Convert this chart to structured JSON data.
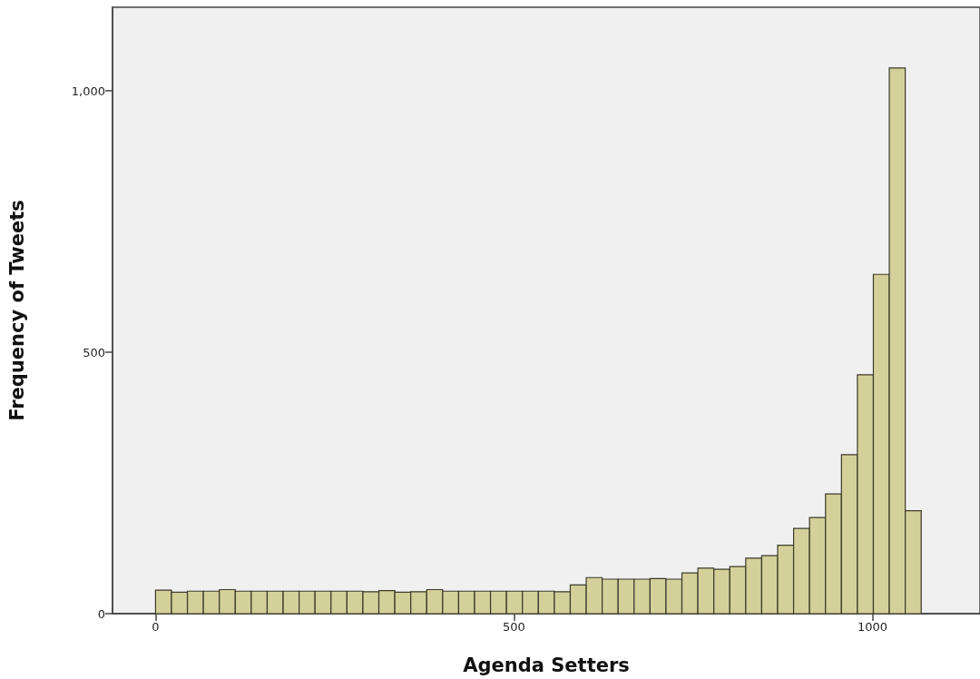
{
  "chart_data": {
    "type": "histogram",
    "xlabel": "Agenda Setters",
    "ylabel": "Frequency of Tweets",
    "color": "#d4d09a",
    "bins": [
      0,
      22.25,
      44.5,
      66.75,
      89,
      111.25,
      133.5,
      155.75,
      178,
      200.25,
      222.5,
      244.75,
      267,
      289.25,
      311.5,
      333.75,
      356,
      378.25,
      400.5,
      422.75,
      445,
      467.25,
      489.5,
      511.75,
      534,
      556.25,
      578.5,
      600.75,
      623,
      645.25,
      667.5,
      689.75,
      712,
      734.25,
      756.5,
      778.75,
      801,
      823.25,
      845.5,
      867.75,
      890,
      912.25,
      934.5,
      956.75,
      979,
      1001.25,
      1023.5,
      1045.75,
      1068
    ],
    "values": [
      45,
      41,
      43,
      43,
      46,
      43,
      43,
      43,
      43,
      43,
      43,
      43,
      43,
      42,
      44,
      41,
      42,
      46,
      43,
      43,
      43,
      43,
      43,
      43,
      43,
      42,
      55,
      69,
      66,
      66,
      66,
      67,
      66,
      78,
      87,
      85,
      90,
      106,
      111,
      131,
      163,
      184,
      229,
      304,
      457,
      649,
      1044,
      197
    ],
    "xlim": [
      -60,
      1150
    ],
    "ylim": [
      0,
      1160
    ],
    "xticks": [
      0,
      500,
      {
        "value": 1000,
        "label": "1000"
      }
    ],
    "yticks": [
      0,
      500,
      {
        "value": 1000,
        "label": "1,000"
      }
    ],
    "grid": false
  }
}
